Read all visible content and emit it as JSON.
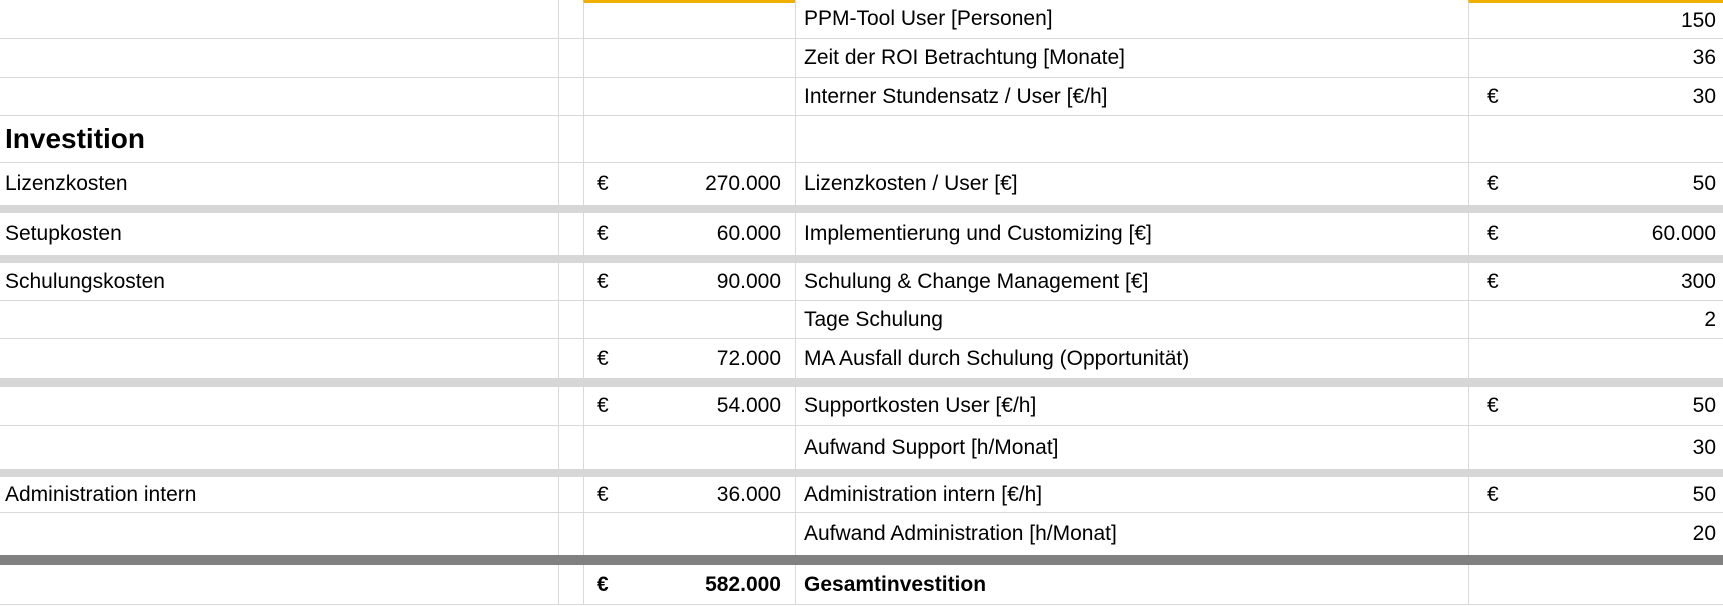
{
  "styles": {
    "accent_border": "#F0B000",
    "gridline": "#D9D9D9",
    "separator_light": "#D7D7D7",
    "separator_dark": "#808080",
    "text": "#000000"
  },
  "rows": [
    {
      "param": "PPM-Tool User [Personen]",
      "value": "150"
    },
    {
      "param": "Zeit der ROI Betrachtung [Monate]",
      "value": "36"
    },
    {
      "param": "Interner Stundensatz / User [€/h]",
      "value_cur": "€",
      "value": "30"
    },
    {
      "label": "Investition"
    },
    {
      "label": "Lizenzkosten",
      "amount_cur": "€",
      "amount": "270.000",
      "param": "Lizenzkosten / User [€]",
      "value_cur": "€",
      "value": "50"
    },
    {
      "label": "Setupkosten",
      "amount_cur": "€",
      "amount": "60.000",
      "param": "Implementierung und Customizing [€]",
      "value_cur": "€",
      "value": "60.000"
    },
    {
      "label": "Schulungskosten",
      "amount_cur": "€",
      "amount": "90.000",
      "param": "Schulung & Change Management [€]",
      "value_cur": "€",
      "value": "300"
    },
    {
      "param": "Tage Schulung",
      "value": "2"
    },
    {
      "amount_cur": "€",
      "amount": "72.000",
      "param": "MA Ausfall durch Schulung (Opportunität)"
    },
    {
      "amount_cur": "€",
      "amount": "54.000",
      "param": "Supportkosten User [€/h]",
      "value_cur": "€",
      "value": "50"
    },
    {
      "param": "Aufwand Support [h/Monat]",
      "value": "30"
    },
    {
      "label": "Administration intern",
      "amount_cur": "€",
      "amount": "36.000",
      "param": "Administration intern [€/h]",
      "value_cur": "€",
      "value": "50"
    },
    {
      "param": "Aufwand Administration [h/Monat]",
      "value": "20"
    },
    {
      "amount_cur": "€",
      "amount": "582.000",
      "param": "Gesamtinvestition"
    }
  ]
}
